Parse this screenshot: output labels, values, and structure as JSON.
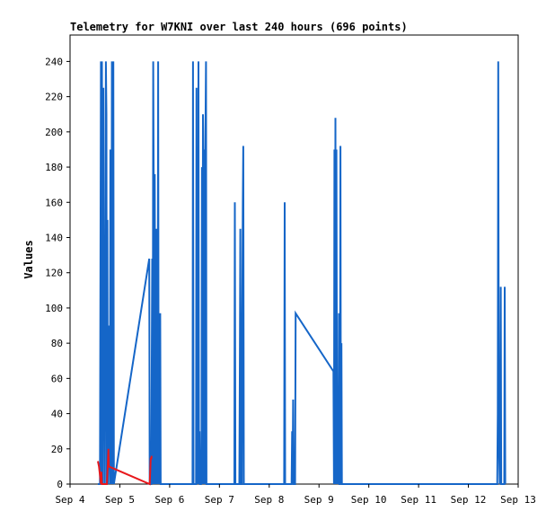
{
  "chart_data": {
    "type": "line",
    "title": "Telemetry for W7KNI over last 240 hours (696 points)",
    "xlabel": "",
    "ylabel": "Values",
    "x_ticks": [
      "Sep 4",
      "Sep 5",
      "Sep 6",
      "Sep 7",
      "Sep 8",
      "Sep 9",
      "Sep 10",
      "Sep 11",
      "Sep 12",
      "Sep 13"
    ],
    "y_ticks": [
      0,
      20,
      40,
      60,
      80,
      100,
      120,
      140,
      160,
      180,
      200,
      220,
      240
    ],
    "xlim": [
      4.0,
      13.0
    ],
    "ylim": [
      0,
      255
    ],
    "grid": false,
    "colors": {
      "primary": "#1566c8",
      "secondary": "#e8181c",
      "axis": "#000000",
      "background": "#ffffff"
    },
    "series": [
      {
        "color": "#1566c8",
        "points": [
          [
            4.56,
            0
          ],
          [
            4.6,
            0
          ],
          [
            4.62,
            240
          ],
          [
            4.63,
            0
          ],
          [
            4.64,
            240
          ],
          [
            4.65,
            130
          ],
          [
            4.66,
            0
          ],
          [
            4.67,
            225
          ],
          [
            4.68,
            30
          ],
          [
            4.69,
            90
          ],
          [
            4.7,
            0
          ],
          [
            4.71,
            150
          ],
          [
            4.72,
            240
          ],
          [
            4.73,
            210
          ],
          [
            4.74,
            0
          ],
          [
            4.75,
            150
          ],
          [
            4.76,
            0
          ],
          [
            4.77,
            30
          ],
          [
            4.78,
            90
          ],
          [
            4.8,
            0
          ],
          [
            4.81,
            190
          ],
          [
            4.82,
            180
          ],
          [
            4.83,
            0
          ],
          [
            4.84,
            240
          ],
          [
            4.85,
            175
          ],
          [
            4.86,
            0
          ],
          [
            4.87,
            240
          ],
          [
            4.88,
            0
          ],
          [
            5.59,
            128
          ],
          [
            5.6,
            0
          ],
          [
            5.63,
            0
          ],
          [
            5.65,
            128
          ],
          [
            5.66,
            0
          ],
          [
            5.67,
            240
          ],
          [
            5.68,
            176
          ],
          [
            5.69,
            0
          ],
          [
            5.7,
            176
          ],
          [
            5.71,
            70
          ],
          [
            5.72,
            0
          ],
          [
            5.73,
            145
          ],
          [
            5.74,
            0
          ],
          [
            5.75,
            80
          ],
          [
            5.76,
            0
          ],
          [
            5.77,
            240
          ],
          [
            5.78,
            0
          ],
          [
            5.79,
            50
          ],
          [
            5.8,
            0
          ],
          [
            5.81,
            97
          ],
          [
            5.82,
            0
          ],
          [
            6.46,
            0
          ],
          [
            6.47,
            240
          ],
          [
            6.48,
            0
          ],
          [
            6.53,
            0
          ],
          [
            6.54,
            225
          ],
          [
            6.55,
            0
          ],
          [
            6.56,
            95
          ],
          [
            6.57,
            0
          ],
          [
            6.58,
            240
          ],
          [
            6.59,
            0
          ],
          [
            6.6,
            30
          ],
          [
            6.61,
            0
          ],
          [
            6.63,
            0
          ],
          [
            6.64,
            20
          ],
          [
            6.65,
            180
          ],
          [
            6.66,
            0
          ],
          [
            6.67,
            210
          ],
          [
            6.68,
            180
          ],
          [
            6.69,
            0
          ],
          [
            6.7,
            190
          ],
          [
            6.71,
            0
          ],
          [
            6.72,
            200
          ],
          [
            6.73,
            240
          ],
          [
            6.74,
            0
          ],
          [
            7.3,
            0
          ],
          [
            7.31,
            160
          ],
          [
            7.32,
            0
          ],
          [
            7.4,
            0
          ],
          [
            7.41,
            72
          ],
          [
            7.42,
            145
          ],
          [
            7.43,
            0
          ],
          [
            7.45,
            0
          ],
          [
            7.46,
            97
          ],
          [
            7.47,
            160
          ],
          [
            7.48,
            192
          ],
          [
            7.49,
            0
          ],
          [
            8.3,
            0
          ],
          [
            8.31,
            160
          ],
          [
            8.32,
            0
          ],
          [
            8.45,
            0
          ],
          [
            8.46,
            30
          ],
          [
            8.47,
            0
          ],
          [
            8.48,
            48
          ],
          [
            8.49,
            0
          ],
          [
            8.52,
            0
          ],
          [
            8.53,
            97
          ],
          [
            9.29,
            64
          ],
          [
            9.3,
            0
          ],
          [
            9.31,
            190
          ],
          [
            9.32,
            0
          ],
          [
            9.33,
            208
          ],
          [
            9.34,
            0
          ],
          [
            9.35,
            190
          ],
          [
            9.36,
            40
          ],
          [
            9.37,
            0
          ],
          [
            9.38,
            30
          ],
          [
            9.39,
            0
          ],
          [
            9.4,
            97
          ],
          [
            9.41,
            0
          ],
          [
            9.42,
            0
          ],
          [
            9.43,
            192
          ],
          [
            9.44,
            0
          ],
          [
            9.45,
            80
          ],
          [
            9.46,
            0
          ],
          [
            12.58,
            0
          ],
          [
            12.59,
            40
          ],
          [
            12.6,
            240
          ],
          [
            12.61,
            48
          ],
          [
            12.62,
            16
          ],
          [
            12.63,
            0
          ],
          [
            12.64,
            16
          ],
          [
            12.65,
            112
          ],
          [
            12.66,
            0
          ],
          [
            12.72,
            0
          ],
          [
            12.73,
            112
          ],
          [
            12.74,
            0
          ]
        ]
      },
      {
        "color": "#e8181c",
        "points": [
          [
            4.56,
            13
          ],
          [
            4.58,
            10
          ],
          [
            4.6,
            5
          ],
          [
            4.62,
            0
          ],
          [
            4.63,
            7
          ],
          [
            4.64,
            0
          ],
          [
            4.74,
            0
          ],
          [
            4.76,
            12
          ],
          [
            4.77,
            20
          ],
          [
            4.78,
            10
          ],
          [
            5.6,
            0
          ],
          [
            5.61,
            8
          ],
          [
            5.62,
            15
          ],
          [
            5.63,
            14
          ],
          [
            5.64,
            16
          ]
        ]
      }
    ]
  }
}
